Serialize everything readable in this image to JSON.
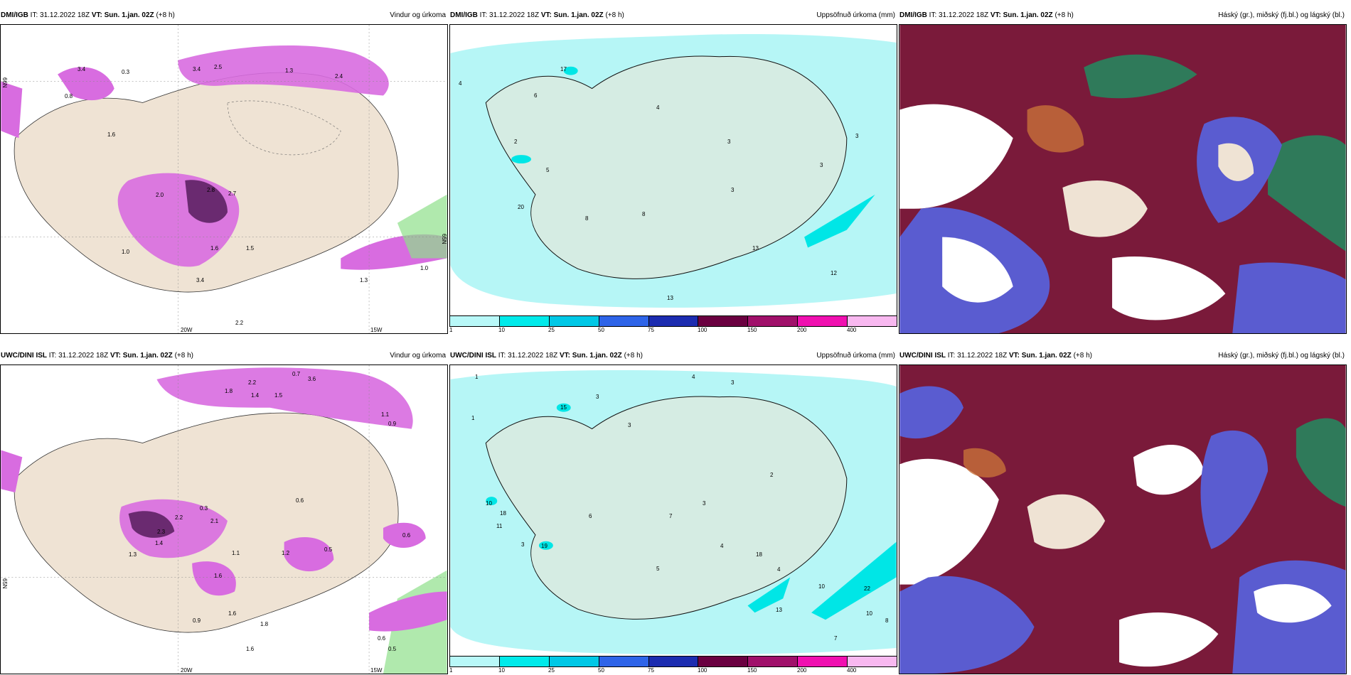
{
  "colors": {
    "land": "#efe3d4",
    "precip_purple": "#d86ce0",
    "precip_dark": "#6a2a70",
    "cum_light": "#b6f6f6",
    "cum_cyan": "#00e6e6",
    "cloud_dark": "#7a1a3a",
    "cloud_blue": "#5a5cd0",
    "cloud_orange": "#c8703a",
    "cloud_green": "#2f7a5a"
  },
  "panels": [
    {
      "id": "dmi-wind",
      "model": "DMI/IGB",
      "init_label": "IT:",
      "init_time": "31.12.2022 18Z",
      "valid_label": "VT:",
      "valid_time": "Sun. 1.jan. 02Z",
      "lead": "(+8 h)",
      "product": "Vindur og úrkoma",
      "icon": "wind-precip-map-icon",
      "x_ticks": [
        "20W",
        "15W"
      ],
      "lat_ticks": [
        "66N",
        "65N"
      ],
      "values": [
        "3.4",
        "0.3",
        "3.4",
        "2.5",
        "1.3",
        "2.4",
        "0.8",
        "1.6",
        "2.0",
        "2.8",
        "2.7",
        "1.6",
        "1.5",
        "3.4",
        "1.0",
        "1.3",
        "1.0",
        "2.2"
      ]
    },
    {
      "id": "dmi-cum",
      "model": "DMI/IGB",
      "init_label": "IT:",
      "init_time": "31.12.2022 18Z",
      "valid_label": "VT:",
      "valid_time": "Sun. 1.jan. 02Z",
      "lead": "(+8 h)",
      "product": "Uppsöfnuð úrkoma (mm)",
      "icon": "accumulated-precip-map-icon",
      "values": [
        "4",
        "17",
        "6",
        "2",
        "5",
        "20",
        "4",
        "3",
        "8",
        "8",
        "3",
        "3",
        "13",
        "12",
        "13",
        "3"
      ]
    },
    {
      "id": "dmi-cloud",
      "model": "DMI/IGB",
      "init_label": "IT:",
      "init_time": "31.12.2022 18Z",
      "valid_label": "VT:",
      "valid_time": "Sun. 1.jan. 02Z",
      "lead": "(+8 h)",
      "product": "Háský (gr.), miðský (fj.bl.) og lágský (bl.)",
      "icon": "cloud-cover-map-icon"
    },
    {
      "id": "uwc-wind",
      "model": "UWC/DINI ISL",
      "init_label": "IT:",
      "init_time": "31.12.2022 18Z",
      "valid_label": "VT:",
      "valid_time": "Sun. 1.jan. 02Z",
      "lead": "(+8 h)",
      "product": "Vindur og úrkoma",
      "icon": "wind-precip-map-icon",
      "x_ticks": [
        "20W",
        "15W"
      ],
      "lat_ticks": [
        "65N"
      ],
      "values": [
        "1.8",
        "2.2",
        "1.4",
        "1.5",
        "0.7",
        "3.6",
        "1.1",
        "0.9",
        "2.2",
        "0.3",
        "2.1",
        "2.3",
        "1.4",
        "1.3",
        "1.1",
        "1.6",
        "1.2",
        "0.6",
        "0.5",
        "0.6",
        "1.6",
        "1.8",
        "1.6",
        "0.9",
        "0.6",
        "0.5"
      ]
    },
    {
      "id": "uwc-cum",
      "model": "UWC/DINI ISL",
      "init_label": "IT:",
      "init_time": "31.12.2022 18Z",
      "valid_label": "VT:",
      "valid_time": "Sun. 1.jan. 02Z",
      "lead": "(+8 h)",
      "product": "Uppsöfnuð úrkoma (mm)",
      "icon": "accumulated-precip-map-icon",
      "values": [
        "1",
        "15",
        "3",
        "4",
        "3",
        "1",
        "3",
        "10",
        "18",
        "11",
        "19",
        "3",
        "6",
        "7",
        "3",
        "5",
        "4",
        "2",
        "18",
        "4",
        "13",
        "10",
        "22",
        "10",
        "8",
        "7"
      ]
    },
    {
      "id": "uwc-cloud",
      "model": "UWC/DINI ISL",
      "init_label": "IT:",
      "init_time": "31.12.2022 18Z",
      "valid_label": "VT:",
      "valid_time": "Sun. 1.jan. 02Z",
      "lead": "(+8 h)",
      "product": "Háský (gr.), miðský (fj.bl.) og lágský (bl.)",
      "icon": "cloud-cover-map-icon"
    }
  ],
  "scale": {
    "labels": [
      "1",
      "10",
      "25",
      "50",
      "75",
      "100",
      "150",
      "200",
      "400"
    ],
    "colors": [
      "#b8f8f8",
      "#00eaea",
      "#00c8e6",
      "#2e64e8",
      "#1c2cb0",
      "#6a0040",
      "#a0106a",
      "#f010b0",
      "#f8b8f0"
    ]
  }
}
